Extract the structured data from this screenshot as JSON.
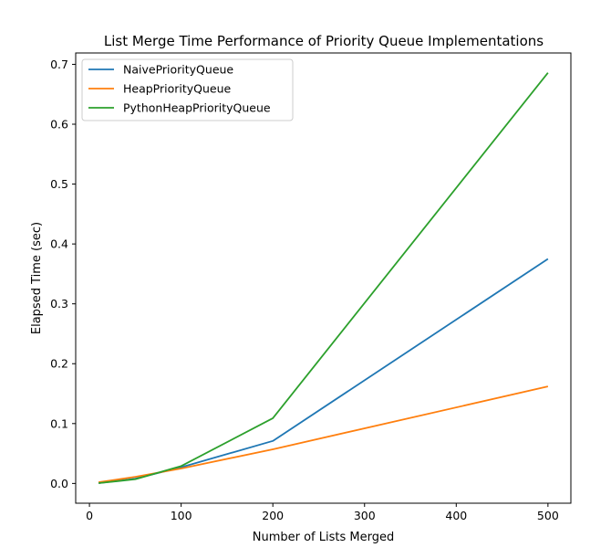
{
  "chart_data": {
    "type": "line",
    "title": "List Merge Time Performance of Priority Queue Implementations",
    "xlabel": "Number of Lists Merged",
    "ylabel": "Elapsed Time (sec)",
    "xlim": [
      -15,
      525
    ],
    "ylim": [
      -0.033,
      0.719
    ],
    "xticks": [
      0,
      100,
      200,
      300,
      400,
      500
    ],
    "yticks": [
      0.0,
      0.1,
      0.2,
      0.3,
      0.4,
      0.5,
      0.6,
      0.7
    ],
    "xtick_labels": [
      "0",
      "100",
      "200",
      "300",
      "400",
      "500"
    ],
    "ytick_labels": [
      "0.0",
      "0.1",
      "0.2",
      "0.3",
      "0.4",
      "0.5",
      "0.6",
      "0.7"
    ],
    "grid": false,
    "legend_position": "upper-left",
    "x": [
      10,
      50,
      100,
      200,
      500
    ],
    "series": [
      {
        "name": "NaivePriorityQueue",
        "color": "#1f77b4",
        "values": [
          0.0005,
          0.008,
          0.027,
          0.071,
          0.375
        ]
      },
      {
        "name": "HeapPriorityQueue",
        "color": "#ff7f0e",
        "values": [
          0.002,
          0.011,
          0.025,
          0.057,
          0.162
        ]
      },
      {
        "name": "PythonHeapPriorityQueue",
        "color": "#2ca02c",
        "values": [
          0.0005,
          0.007,
          0.029,
          0.109,
          0.686
        ]
      }
    ]
  }
}
